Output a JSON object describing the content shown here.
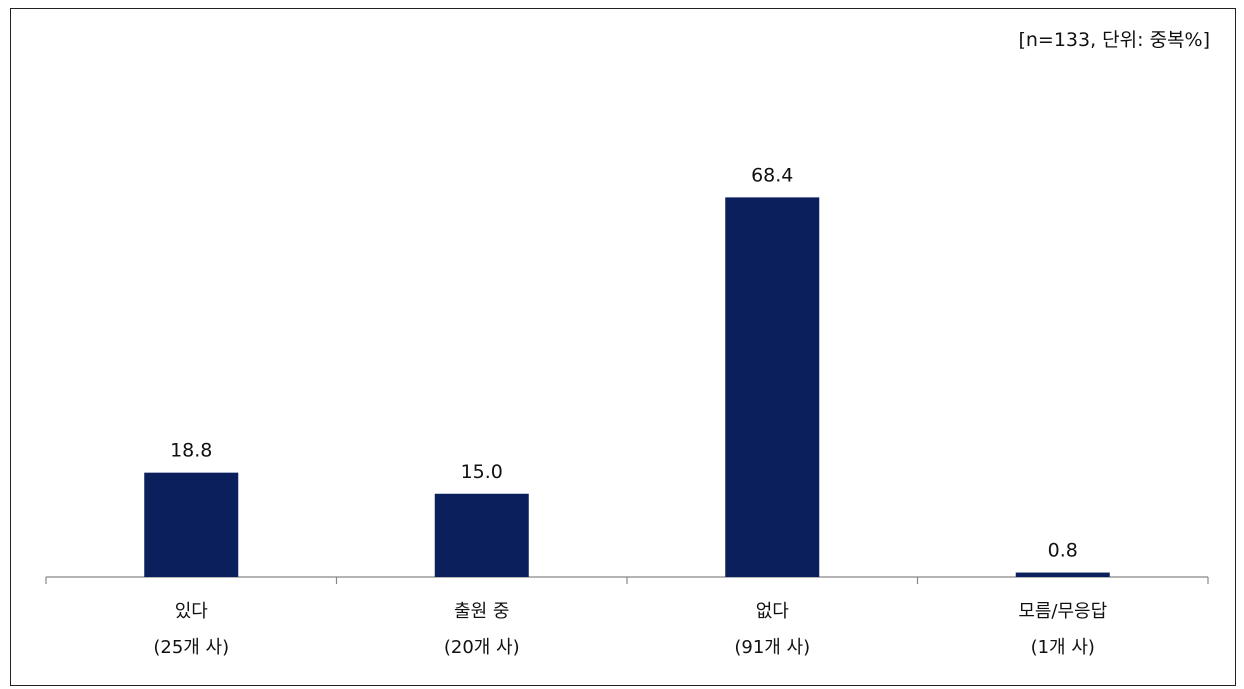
{
  "note": "[n=133, 단위: 중복%]",
  "colors": {
    "bar": "#0a1f5c",
    "axis": "#888888",
    "text": "#111111"
  },
  "chart_data": {
    "type": "bar",
    "categories": [
      {
        "line1": "있다",
        "line2": "(25개 사)"
      },
      {
        "line1": "출원 중",
        "line2": "(20개 사)"
      },
      {
        "line1": "없다",
        "line2": "(91개 사)"
      },
      {
        "line1": "모름/무응답",
        "line2": "(1개 사)"
      }
    ],
    "values": [
      18.8,
      15.0,
      68.4,
      0.8
    ],
    "value_labels": [
      "18.8",
      "15.0",
      "68.4",
      "0.8"
    ],
    "ylim": [
      0,
      100
    ],
    "grid": false,
    "legend": "none"
  }
}
